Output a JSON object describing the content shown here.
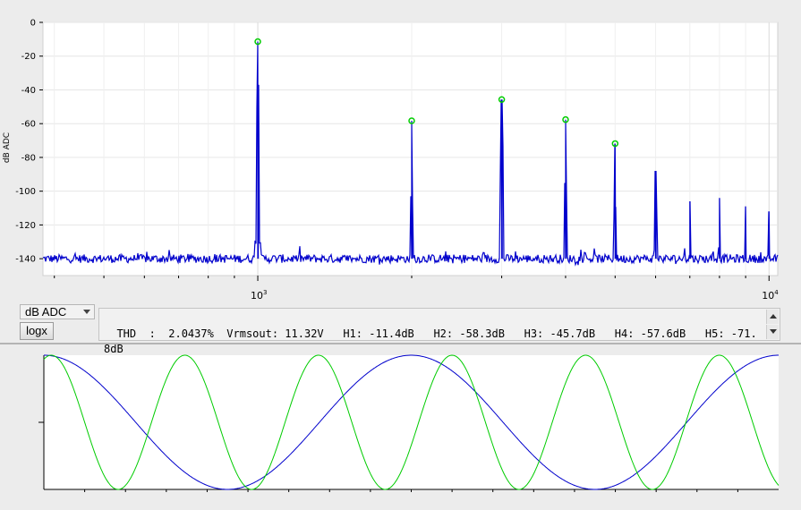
{
  "spectrum": {
    "y_axis_label": "dB ADC",
    "y_ticks": [
      "0",
      "-20",
      "-40",
      "-60",
      "-80",
      "-100",
      "-120",
      "-140"
    ],
    "y_tick_values": [
      0,
      -20,
      -40,
      -60,
      -80,
      -100,
      -120,
      -140
    ],
    "x_ticks": [
      {
        "base": "10",
        "exp": "3",
        "value": 1000
      },
      {
        "base": "10",
        "exp": "4",
        "value": 10000
      }
    ],
    "trace_color": "#0000cc",
    "marker_color": "#00cc00"
  },
  "chart_data": [
    {
      "type": "line",
      "xscale": "log",
      "xlim": [
        380,
        10400
      ],
      "ylim": [
        -150,
        0
      ],
      "ylabel": "dB ADC",
      "noise_floor_db": -140,
      "peaks": [
        {
          "x": 1000,
          "y": -11.4
        },
        {
          "x": 2000,
          "y": -58.3
        },
        {
          "x": 3000,
          "y": -45.7
        },
        {
          "x": 4000,
          "y": -57.6
        },
        {
          "x": 5000,
          "y": -71.8
        },
        {
          "x": 6000,
          "y": -88
        },
        {
          "x": 7000,
          "y": -106
        },
        {
          "x": 8000,
          "y": -104
        },
        {
          "x": 9000,
          "y": -109
        },
        {
          "x": 10000,
          "y": -112
        }
      ],
      "markers": [
        {
          "x": 1000,
          "y": -11.4
        },
        {
          "x": 2000,
          "y": -58.3
        },
        {
          "x": 3000,
          "y": -45.7
        },
        {
          "x": 4000,
          "y": -57.6
        },
        {
          "x": 5000,
          "y": -71.8
        }
      ]
    },
    {
      "type": "line",
      "series": [
        {
          "color": "#0000cc",
          "cycles": 2,
          "phase_deg": 90
        },
        {
          "color": "#00cc00",
          "cycles": 5.5,
          "phase_deg": 70
        }
      ]
    }
  ],
  "controls": {
    "scale_select_value": "dB ADC",
    "logx_button_label": "logx"
  },
  "results": {
    "text": "THD  :  2.0437%  Vrmsout: 11.32V   H1: -11.4dB   H2: -58.3dB   H3: -45.7dB   H4: -57.6dB   H5: -71.8dB"
  }
}
